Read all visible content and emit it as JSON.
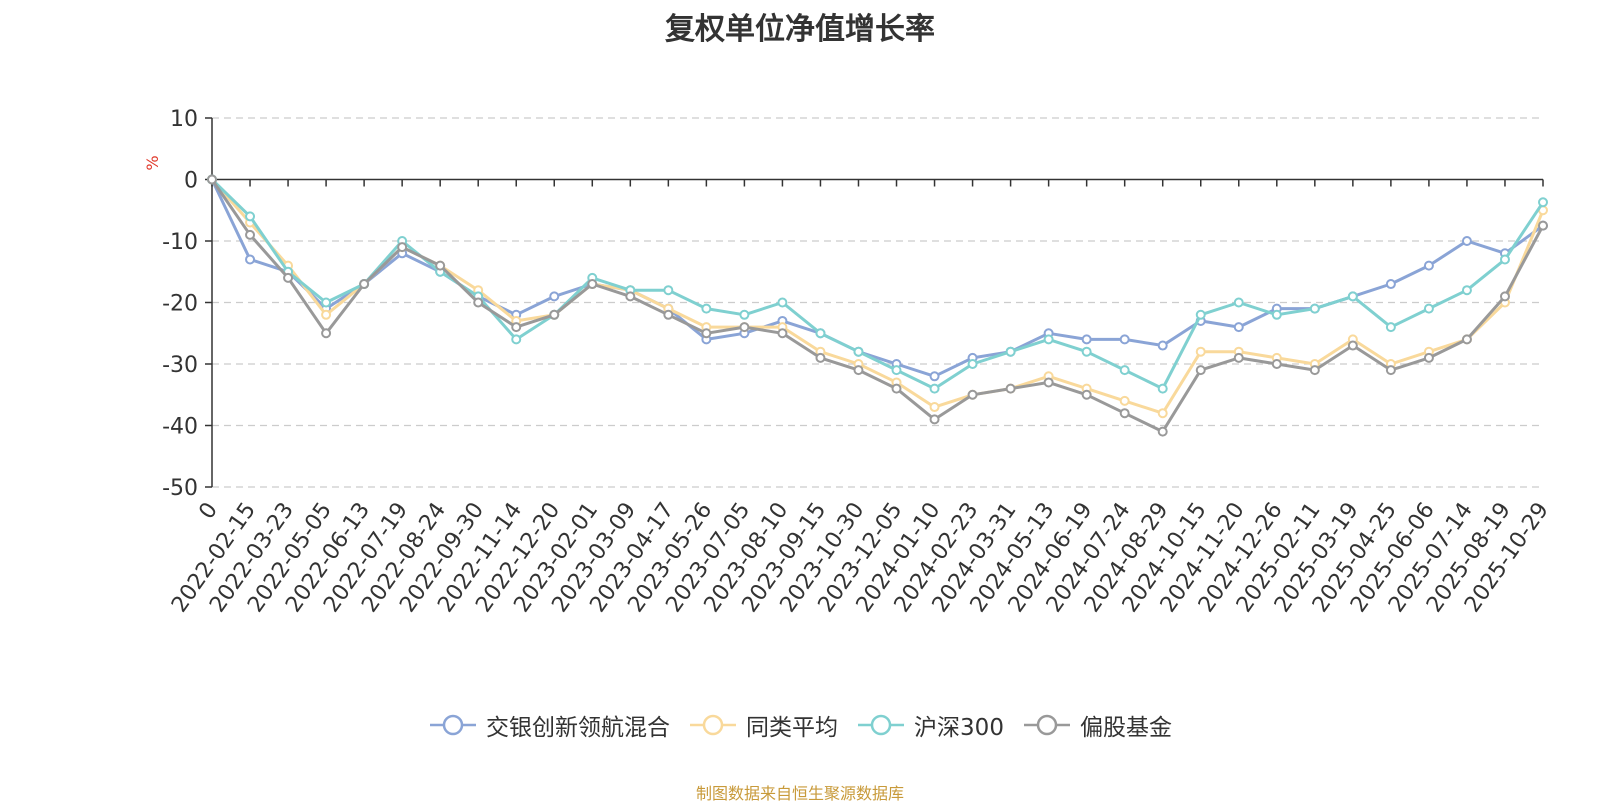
{
  "chart_data": {
    "type": "line",
    "title": "复权单位净值增长率",
    "ylabel": "%",
    "ylim": [
      -50,
      10
    ],
    "yticks": [
      10,
      0,
      -10,
      -20,
      -30,
      -40,
      -50
    ],
    "grid": true,
    "legend_position": "bottom",
    "categories": [
      "0",
      "2022-02-15",
      "2022-03-23",
      "2022-05-05",
      "2022-06-13",
      "2022-07-19",
      "2022-08-24",
      "2022-09-30",
      "2022-11-14",
      "2022-12-20",
      "2023-02-01",
      "2023-03-09",
      "2023-04-17",
      "2023-05-26",
      "2023-07-05",
      "2023-08-10",
      "2023-09-15",
      "2023-10-30",
      "2023-12-05",
      "2024-01-10",
      "2024-02-23",
      "2024-03-31",
      "2024-05-13",
      "2024-06-19",
      "2024-07-24",
      "2024-08-29",
      "2024-10-15",
      "2024-11-20",
      "2024-12-26",
      "2025-02-11",
      "2025-03-19",
      "2025-04-25",
      "2025-06-06",
      "2025-07-14",
      "2025-08-19",
      "2025-10-29"
    ],
    "series": [
      {
        "name": "交银创新领航混合",
        "color": "#8aa4d6",
        "values": [
          0,
          -13,
          -15,
          -21,
          -17,
          -12,
          -15,
          -19,
          -22,
          -19,
          -17,
          -18,
          -21,
          -26,
          -25,
          -23,
          -25,
          -28,
          -30,
          -32,
          -29,
          -28,
          -25,
          -26,
          -26,
          -27,
          -23,
          -24,
          -21,
          -21,
          -19,
          -17,
          -14,
          -10,
          -12,
          -7.5
        ]
      },
      {
        "name": "同类平均",
        "color": "#f9d99b",
        "values": [
          0,
          -7,
          -14,
          -22,
          -17,
          -11,
          -14,
          -18,
          -23,
          -22,
          -17,
          -18,
          -21,
          -24,
          -24,
          -24,
          -28,
          -30,
          -33,
          -37,
          -35,
          -34,
          -32,
          -34,
          -36,
          -38,
          -28,
          -28,
          -29,
          -30,
          -26,
          -30,
          -28,
          -26,
          -20,
          -5
        ]
      },
      {
        "name": "沪深300",
        "color": "#7fd0d0",
        "values": [
          0,
          -6,
          -15,
          -20,
          -17,
          -10,
          -15,
          -19,
          -26,
          -22,
          -16,
          -18,
          -18,
          -21,
          -22,
          -20,
          -25,
          -28,
          -31,
          -34,
          -30,
          -28,
          -26,
          -28,
          -31,
          -34,
          -22,
          -20,
          -22,
          -21,
          -19,
          -24,
          -21,
          -18,
          -13,
          -3.7
        ]
      },
      {
        "name": "偏股基金",
        "color": "#999999",
        "values": [
          0,
          -9,
          -16,
          -25,
          -17,
          -11,
          -14,
          -20,
          -24,
          -22,
          -17,
          -19,
          -22,
          -25,
          -24,
          -25,
          -29,
          -31,
          -34,
          -39,
          -35,
          -34,
          -33,
          -35,
          -38,
          -41,
          -31,
          -29,
          -30,
          -31,
          -27,
          -31,
          -29,
          -26,
          -19,
          -7.5
        ]
      }
    ]
  },
  "source_note": "制图数据来自恒生聚源数据库"
}
